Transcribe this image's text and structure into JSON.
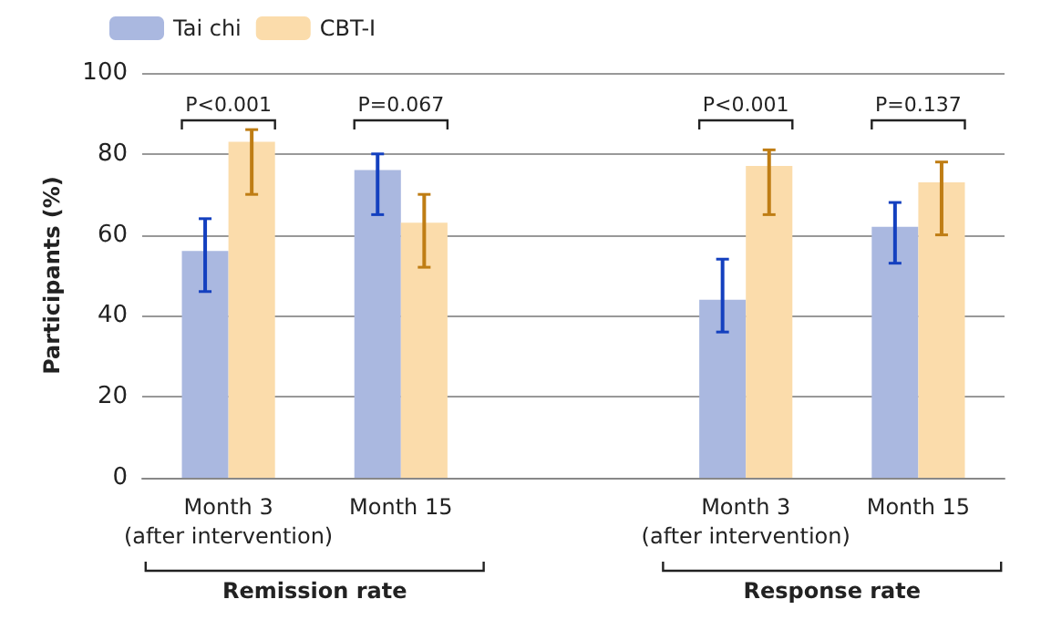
{
  "chart_data": {
    "type": "bar",
    "ylabel": "Participants (%)",
    "categories": [
      "Month 3\n(after intervention)",
      "Month 15",
      null,
      "Month 3\n(after intervention)",
      "Month 15"
    ],
    "series": [
      {
        "name": "Tai chi",
        "color": "#aab8e0",
        "values": [
          56,
          76,
          null,
          44,
          62
        ],
        "errors": [
          [
            46,
            64
          ],
          [
            65,
            80
          ],
          null,
          [
            36,
            54
          ],
          [
            53,
            68
          ]
        ]
      },
      {
        "name": "CBT-I",
        "color": "#fbdcab",
        "values": [
          83,
          63,
          null,
          77,
          73
        ],
        "errors": [
          [
            70,
            86
          ],
          [
            52,
            70
          ],
          null,
          [
            65,
            81
          ],
          [
            60,
            78
          ]
        ]
      }
    ],
    "ylim": [
      0,
      100
    ],
    "yticks": [
      0,
      20,
      40,
      60,
      80,
      100
    ],
    "grid": "y",
    "legend": "top left",
    "annotations": [
      "P<0.001",
      "P=0.067",
      "P<0.001",
      "P=0.137",
      "Remission rate",
      "Response rate"
    ]
  }
}
